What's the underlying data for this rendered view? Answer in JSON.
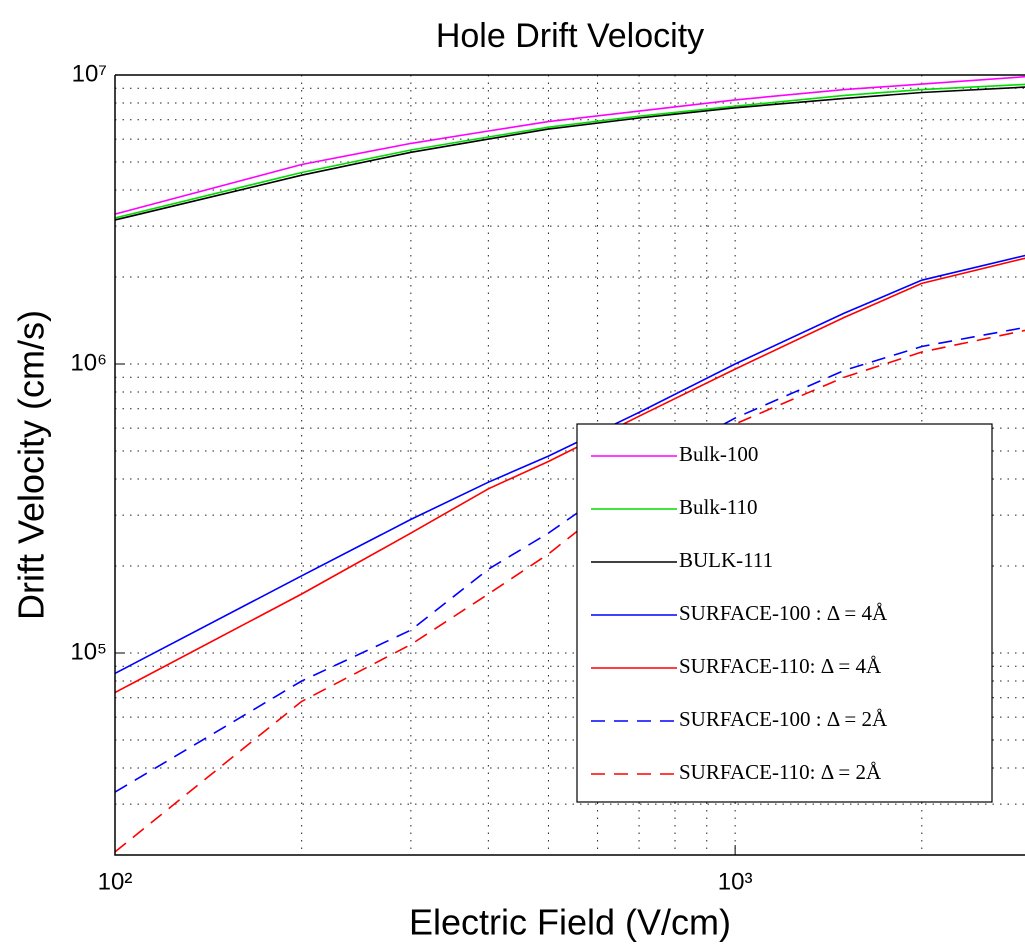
{
  "chart_data": {
    "type": "line",
    "title": "Hole Drift Velocity",
    "x_label": "Electric Field (V/cm)",
    "y_label": "Drift Velocity (cm/s)",
    "x_log": true,
    "y_log": true,
    "grid": true,
    "legend": "lower right",
    "xlim": [
      100,
      3000
    ],
    "ylim": [
      20000,
      10000000
    ],
    "xticks": [
      {
        "value": 100,
        "label": "10²"
      },
      {
        "value": 1000,
        "label": "10³"
      }
    ],
    "yticks": [
      {
        "value": 100000,
        "label": "10⁵"
      },
      {
        "value": 1000000,
        "label": "10⁶"
      },
      {
        "value": 10000000,
        "label": "10⁷"
      }
    ],
    "xminorticks": [
      200,
      300,
      400,
      500,
      600,
      700,
      800,
      900,
      2000,
      3000
    ],
    "yminorticks": [
      20000,
      30000,
      40000,
      50000,
      60000,
      70000,
      80000,
      90000,
      200000,
      300000,
      400000,
      500000,
      600000,
      700000,
      800000,
      900000,
      2000000,
      3000000,
      4000000,
      5000000,
      6000000,
      7000000,
      8000000,
      9000000
    ],
    "x": [
      100,
      200,
      300,
      400,
      500,
      700,
      1000,
      1500,
      2000,
      3000
    ],
    "series": [
      {
        "name": "Bulk-100",
        "color": "#ff00ff",
        "dash": false,
        "values": [
          3300000,
          4900000,
          5800000,
          6400000,
          6900000,
          7500000,
          8200000,
          8900000,
          9300000,
          9900000
        ]
      },
      {
        "name": "Bulk-110",
        "color": "#00dd00",
        "dash": false,
        "values": [
          3200000,
          4600000,
          5500000,
          6100000,
          6600000,
          7200000,
          7800000,
          8500000,
          8900000,
          9300000
        ]
      },
      {
        "name": "BULK-111",
        "color": "#000000",
        "dash": false,
        "values": [
          3150000,
          4500000,
          5400000,
          6000000,
          6500000,
          7100000,
          7700000,
          8300000,
          8700000,
          9100000
        ]
      },
      {
        "name": "SURFACE-100 : Δ = 4Å",
        "color": "#0000ff",
        "dash": false,
        "values": [
          85000,
          185000,
          290000,
          390000,
          480000,
          680000,
          1000000,
          1500000,
          1950000,
          2400000
        ]
      },
      {
        "name": "SURFACE-110: Δ = 4Å",
        "color": "#ff0000",
        "dash": false,
        "values": [
          73000,
          160000,
          260000,
          370000,
          460000,
          660000,
          960000,
          1450000,
          1900000,
          2350000
        ]
      },
      {
        "name": "SURFACE-100 : Δ = 2Å",
        "color": "#0000ff",
        "dash": true,
        "values": [
          33000,
          80000,
          120000,
          195000,
          260000,
          430000,
          650000,
          950000,
          1150000,
          1350000
        ]
      },
      {
        "name": "SURFACE-110: Δ = 2Å",
        "color": "#ff0000",
        "dash": true,
        "values": [
          20500,
          68000,
          107000,
          160000,
          220000,
          390000,
          620000,
          900000,
          1100000,
          1320000
        ]
      }
    ]
  }
}
